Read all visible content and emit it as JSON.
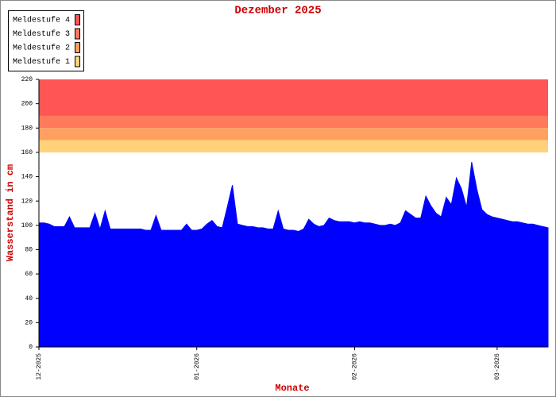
{
  "chart_data": {
    "type": "area",
    "title": "Dezember 2025",
    "y_label": "Wasserstand in cm",
    "x_label": "Monate",
    "levels": [
      {
        "name": "Meldestufe 4",
        "color": "#ff5555",
        "from": 190,
        "to": 220
      },
      {
        "name": "Meldestufe 3",
        "color": "#ff7a5a",
        "from": 180,
        "to": 190
      },
      {
        "name": "Meldestufe 2",
        "color": "#ffa060",
        "from": 170,
        "to": 180
      },
      {
        "name": "Meldestufe 1",
        "color": "#ffd27a",
        "from": 160,
        "to": 170
      }
    ],
    "x": [
      0,
      1,
      2,
      3,
      4,
      5,
      6,
      7,
      8,
      9,
      10,
      11,
      12,
      13,
      14,
      15,
      16,
      17,
      18,
      19,
      20,
      21,
      22,
      23,
      24,
      25,
      26,
      27,
      28,
      29,
      30,
      31,
      32,
      33,
      34,
      35,
      36,
      37,
      38,
      39,
      40,
      41,
      42,
      43,
      44,
      45,
      46,
      47,
      48,
      49,
      50,
      51,
      52,
      53,
      54,
      55,
      56,
      57,
      58,
      59,
      60,
      61,
      62,
      63,
      64,
      65,
      66,
      67,
      68,
      69,
      70,
      71,
      72,
      73,
      74,
      75,
      76,
      77,
      78,
      79,
      80,
      81,
      82,
      83,
      84,
      85,
      86,
      87,
      88,
      89,
      90,
      91,
      92,
      93,
      94,
      95,
      96,
      97,
      98,
      99,
      100
    ],
    "series": [
      {
        "color": "#0000ff",
        "values": [
          102,
          102,
          101,
          99,
          99,
          99,
          107,
          98,
          98,
          98,
          98,
          110,
          97,
          112,
          97,
          97,
          97,
          97,
          97,
          97,
          97,
          96,
          96,
          108,
          96,
          96,
          96,
          96,
          96,
          101,
          96,
          96,
          97,
          101,
          104,
          99,
          98,
          115,
          133,
          101,
          100,
          99,
          99,
          98,
          98,
          97,
          97,
          112,
          97,
          96,
          96,
          95,
          97,
          105,
          101,
          99,
          100,
          106,
          104,
          103,
          103,
          103,
          102,
          103,
          102,
          102,
          101,
          100,
          100,
          101,
          100,
          102,
          112,
          109,
          106,
          106,
          124,
          116,
          110,
          107,
          123,
          117,
          139,
          130,
          115,
          152,
          130,
          113,
          109,
          107,
          106,
          105,
          104,
          103,
          103,
          102,
          101,
          101,
          100,
          99,
          98
        ]
      }
    ],
    "xlim": [
      0,
      100
    ],
    "xticks": [
      {
        "value": 0,
        "label": "12-2025"
      },
      {
        "value": 31,
        "label": "01-2026"
      },
      {
        "value": 62,
        "label": "02-2026"
      },
      {
        "value": 90,
        "label": "03-2026"
      }
    ],
    "ylim": [
      0,
      220
    ],
    "yticks": [
      0,
      20,
      40,
      60,
      80,
      100,
      120,
      140,
      160,
      180,
      200,
      220
    ]
  }
}
